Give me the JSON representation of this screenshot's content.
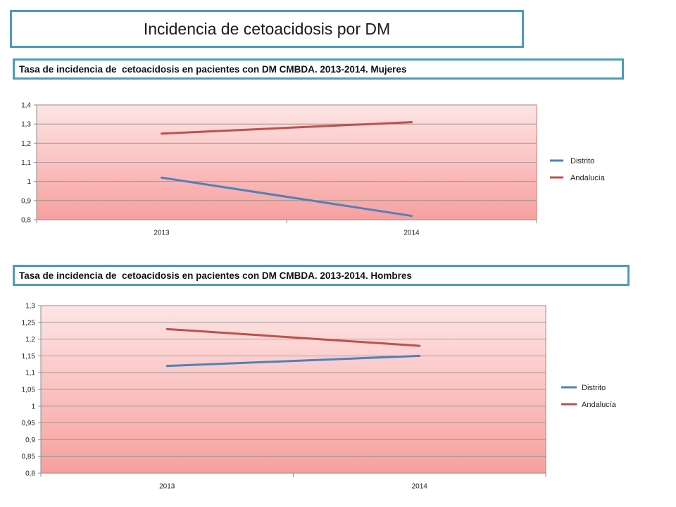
{
  "slide": {
    "title": "Incidencia de cetoacidosis por DM"
  },
  "chart_data": [
    {
      "type": "line",
      "title": "Tasa de incidencia de  cetoacidosis en pacientes con DM CMBDA. 2013-2014. Mujeres",
      "xlabel": "",
      "ylabel": "",
      "categories": [
        "2013",
        "2014"
      ],
      "series": [
        {
          "name": "Distrito",
          "values": [
            1.02,
            0.82
          ],
          "color": "#4f81bd"
        },
        {
          "name": "Andalucía",
          "values": [
            1.25,
            1.31
          ],
          "color": "#c0504d"
        }
      ],
      "ylim": [
        0.8,
        1.4
      ],
      "yticks": [
        0.8,
        0.9,
        1.0,
        1.1,
        1.2,
        1.3,
        1.4
      ],
      "ytick_labels": [
        "0,8",
        "0,9",
        "1",
        "1,1",
        "1,2",
        "1,3",
        "1,4"
      ],
      "grid": true,
      "legend": "right"
    },
    {
      "type": "line",
      "title": "Tasa de incidencia de  cetoacidosis en pacientes con DM CMBDA. 2013-2014. Hombres",
      "xlabel": "",
      "ylabel": "",
      "categories": [
        "2013",
        "2014"
      ],
      "series": [
        {
          "name": "Distrito",
          "values": [
            1.12,
            1.15
          ],
          "color": "#4f81bd"
        },
        {
          "name": "Andalucía",
          "values": [
            1.23,
            1.18
          ],
          "color": "#c0504d"
        }
      ],
      "ylim": [
        0.8,
        1.3
      ],
      "yticks": [
        0.8,
        0.85,
        0.9,
        0.95,
        1.0,
        1.05,
        1.1,
        1.15,
        1.2,
        1.25,
        1.3
      ],
      "ytick_labels": [
        "0,8",
        "0,85",
        "0,9",
        "0,95",
        "1",
        "1,05",
        "1,1",
        "1,15",
        "1,2",
        "1,25",
        "1,3"
      ],
      "grid": true,
      "legend": "right"
    }
  ]
}
